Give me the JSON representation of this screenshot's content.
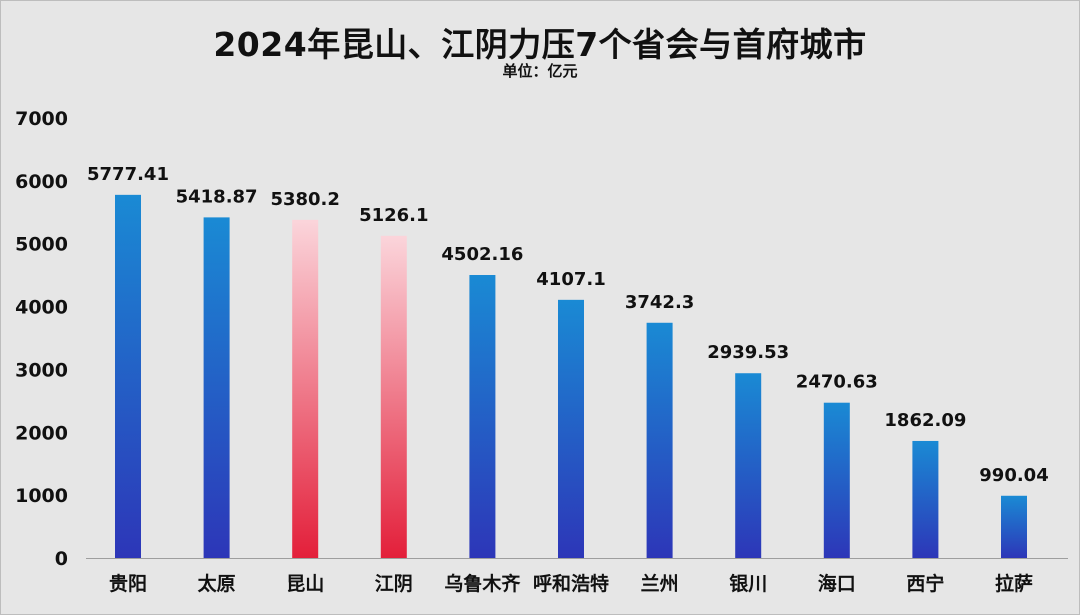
{
  "chart_data": {
    "type": "bar",
    "title": "2024年昆山、江阴力压7个省会与首府城市",
    "subtitle": "单位：亿元",
    "xlabel": "",
    "ylabel": "",
    "categories": [
      "贵阳",
      "太原",
      "昆山",
      "江阴",
      "乌鲁木齐",
      "呼和浩特",
      "兰州",
      "银川",
      "海口",
      "西宁",
      "拉萨"
    ],
    "values": [
      5777.41,
      5418.87,
      5380.2,
      5126.1,
      4502.16,
      4107.1,
      3742.3,
      2939.53,
      2470.63,
      1862.09,
      990.04
    ],
    "value_labels": [
      "5777.41",
      "5418.87",
      "5380.2",
      "5126.1",
      "4502.16",
      "4107.1",
      "3742.3",
      "2939.53",
      "2470.63",
      "1862.09",
      "990.04"
    ],
    "highlight": [
      "昆山",
      "江阴"
    ],
    "ylim": [
      0,
      7000
    ],
    "yticks": [
      0,
      1000,
      2000,
      3000,
      4000,
      5000,
      6000,
      7000
    ],
    "ytick_labels": [
      "0",
      "1000",
      "2000",
      "3000",
      "4000",
      "5000",
      "6000",
      "7000"
    ],
    "grid": false,
    "legend": "none",
    "colors": {
      "bar_top": "#1a8ad4",
      "bar_bottom": "#2d36b8",
      "highlight_top": "#fbd5db",
      "highlight_bottom": "#e31f3a",
      "axis": "#9e9e9e",
      "background": "#e6e6e6"
    }
  }
}
